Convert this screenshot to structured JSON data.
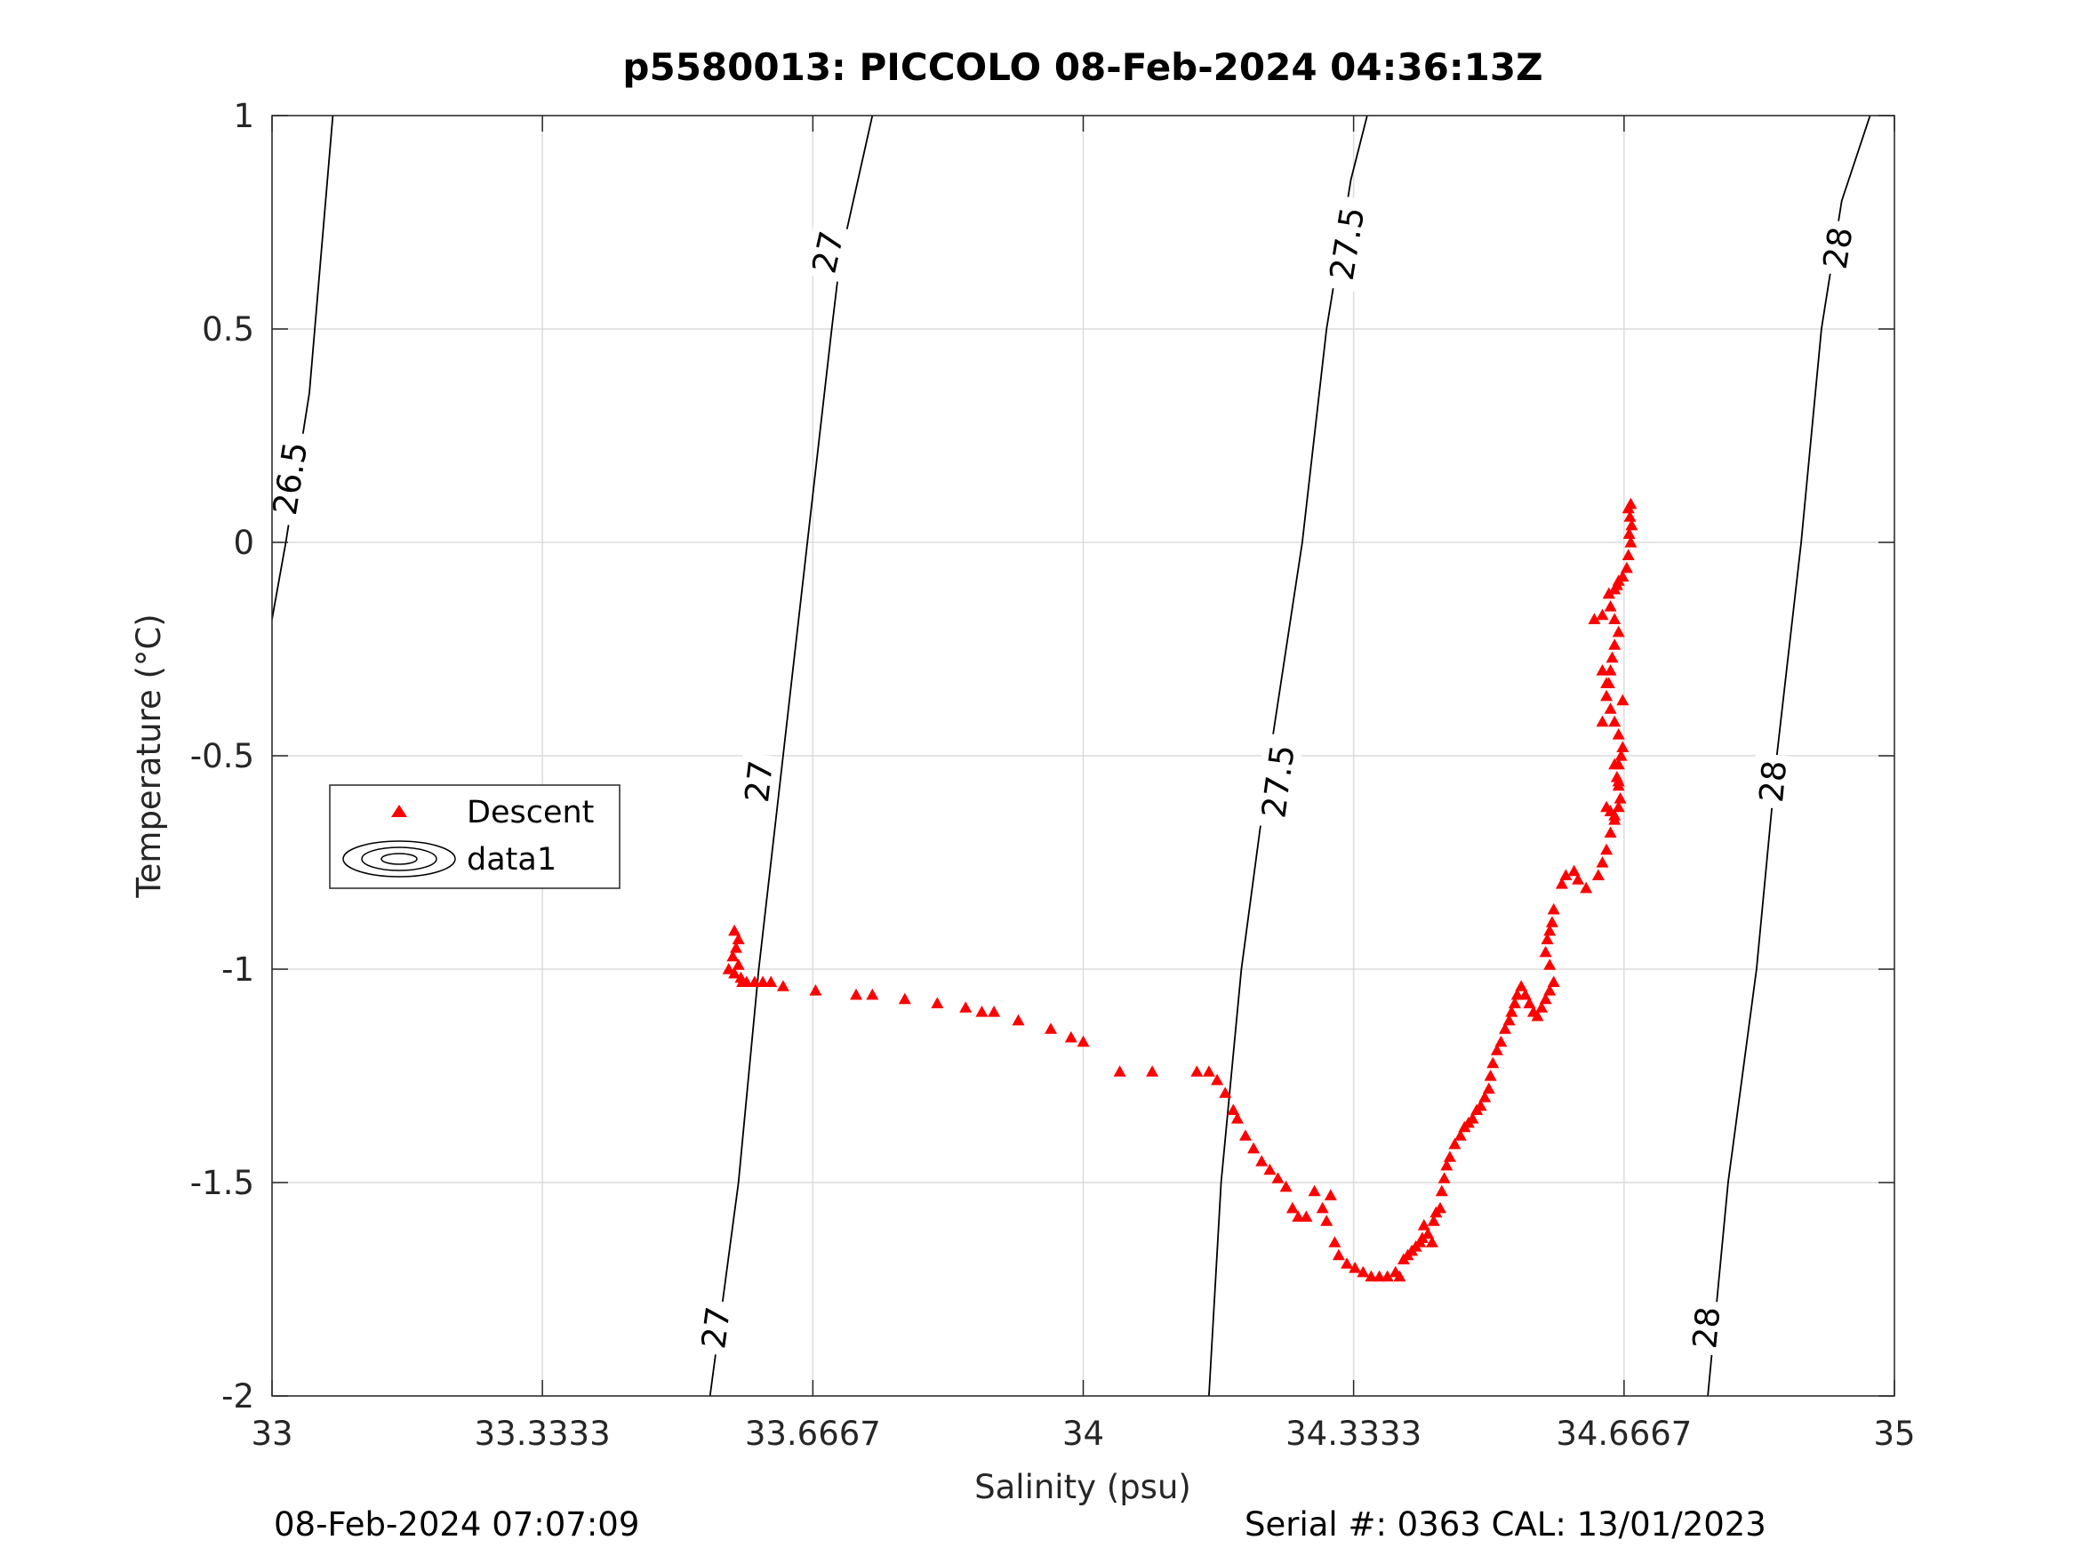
{
  "chart_data": {
    "type": "scatter",
    "title": "p5580013: PICCOLO 08-Feb-2024 04:36:13Z",
    "xlabel": "Salinity (psu)",
    "ylabel": "Temperature (°C)",
    "xlim": [
      33,
      35
    ],
    "ylim": [
      -2,
      1
    ],
    "x_ticks": [
      {
        "value": 33,
        "label": "33"
      },
      {
        "value": 33.3333,
        "label": "33.3333"
      },
      {
        "value": 33.6667,
        "label": "33.6667"
      },
      {
        "value": 34,
        "label": "34"
      },
      {
        "value": 34.3333,
        "label": "34.3333"
      },
      {
        "value": 34.6667,
        "label": "34.6667"
      },
      {
        "value": 35,
        "label": "35"
      }
    ],
    "y_ticks": [
      {
        "value": 1,
        "label": "1"
      },
      {
        "value": 0.5,
        "label": "0.5"
      },
      {
        "value": 0,
        "label": "0"
      },
      {
        "value": -0.5,
        "label": "-0.5"
      },
      {
        "value": -1,
        "label": "-1"
      },
      {
        "value": -1.5,
        "label": "-1.5"
      },
      {
        "value": -2,
        "label": "-2"
      }
    ],
    "grid": true,
    "legend": {
      "placement": "left-middle",
      "entries": [
        {
          "label": "Descent",
          "marker": "triangle",
          "color": "#ff0000"
        },
        {
          "label": "data1",
          "marker": "contour",
          "color": "#000000"
        }
      ]
    },
    "contours": [
      {
        "level": "26.5",
        "points": [
          [
            33.0,
            -0.18
          ],
          [
            33.017,
            0.0
          ],
          [
            33.046,
            0.35
          ],
          [
            33.075,
            1.0
          ]
        ],
        "labels": [
          {
            "s": 33.022,
            "t": 0.15,
            "text": "26.5"
          }
        ]
      },
      {
        "level": "27",
        "points": [
          [
            33.54,
            -2.0
          ],
          [
            33.575,
            -1.5
          ],
          [
            33.6,
            -1.0
          ],
          [
            33.63,
            -0.5
          ],
          [
            33.66,
            0.0
          ],
          [
            33.69,
            0.5
          ],
          [
            33.7,
            0.66
          ],
          [
            33.74,
            1.0
          ]
        ],
        "labels": [
          {
            "s": 33.547,
            "t": -1.84,
            "text": "27"
          },
          {
            "s": 33.6,
            "t": -0.56,
            "text": "27"
          },
          {
            "s": 33.685,
            "t": 0.68,
            "text": "27"
          }
        ]
      },
      {
        "level": "27.5",
        "points": [
          [
            34.155,
            -2.0
          ],
          [
            34.17,
            -1.5
          ],
          [
            34.195,
            -1.0
          ],
          [
            34.23,
            -0.5
          ],
          [
            34.27,
            0.0
          ],
          [
            34.3,
            0.5
          ],
          [
            34.33,
            0.85
          ],
          [
            34.35,
            1.0
          ]
        ],
        "labels": [
          {
            "s": 34.24,
            "t": -0.56,
            "text": "27.5"
          },
          {
            "s": 34.325,
            "t": 0.7,
            "text": "27.5"
          }
        ]
      },
      {
        "level": "28",
        "points": [
          [
            34.77,
            -2.0
          ],
          [
            34.795,
            -1.5
          ],
          [
            34.83,
            -1.0
          ],
          [
            34.855,
            -0.5
          ],
          [
            34.885,
            0.0
          ],
          [
            34.91,
            0.5
          ],
          [
            34.935,
            0.8
          ],
          [
            34.97,
            1.0
          ]
        ],
        "labels": [
          {
            "s": 34.768,
            "t": -1.84,
            "text": "28"
          },
          {
            "s": 34.85,
            "t": -0.56,
            "text": "28"
          },
          {
            "s": 34.93,
            "t": 0.69,
            "text": "28"
          }
        ]
      }
    ],
    "series": [
      {
        "name": "Descent",
        "marker": "triangle",
        "color": "#ff0000",
        "points": [
          [
            33.57,
            -0.91
          ],
          [
            33.575,
            -0.93
          ],
          [
            33.572,
            -0.95
          ],
          [
            33.568,
            -0.97
          ],
          [
            33.575,
            -0.99
          ],
          [
            33.563,
            -1.0
          ],
          [
            33.57,
            -1.01
          ],
          [
            33.578,
            -1.02
          ],
          [
            33.58,
            -1.03
          ],
          [
            33.585,
            -1.03
          ],
          [
            33.595,
            -1.03
          ],
          [
            33.605,
            -1.03
          ],
          [
            33.615,
            -1.03
          ],
          [
            33.63,
            -1.04
          ],
          [
            33.67,
            -1.05
          ],
          [
            33.72,
            -1.06
          ],
          [
            33.74,
            -1.06
          ],
          [
            33.78,
            -1.07
          ],
          [
            33.82,
            -1.08
          ],
          [
            33.855,
            -1.09
          ],
          [
            33.875,
            -1.1
          ],
          [
            33.89,
            -1.1
          ],
          [
            33.92,
            -1.12
          ],
          [
            33.96,
            -1.14
          ],
          [
            33.985,
            -1.16
          ],
          [
            34.0,
            -1.17
          ],
          [
            34.045,
            -1.24
          ],
          [
            34.085,
            -1.24
          ],
          [
            34.14,
            -1.24
          ],
          [
            34.155,
            -1.24
          ],
          [
            34.165,
            -1.26
          ],
          [
            34.175,
            -1.29
          ],
          [
            34.185,
            -1.33
          ],
          [
            34.19,
            -1.35
          ],
          [
            34.2,
            -1.39
          ],
          [
            34.21,
            -1.42
          ],
          [
            34.22,
            -1.45
          ],
          [
            34.23,
            -1.47
          ],
          [
            34.24,
            -1.49
          ],
          [
            34.25,
            -1.51
          ],
          [
            34.258,
            -1.56
          ],
          [
            34.265,
            -1.58
          ],
          [
            34.275,
            -1.58
          ],
          [
            34.285,
            -1.52
          ],
          [
            34.295,
            -1.56
          ],
          [
            34.305,
            -1.53
          ],
          [
            34.3,
            -1.59
          ],
          [
            34.31,
            -1.64
          ],
          [
            34.315,
            -1.67
          ],
          [
            34.325,
            -1.69
          ],
          [
            34.335,
            -1.7
          ],
          [
            34.345,
            -1.71
          ],
          [
            34.355,
            -1.72
          ],
          [
            34.365,
            -1.72
          ],
          [
            34.375,
            -1.72
          ],
          [
            34.385,
            -1.71
          ],
          [
            34.39,
            -1.72
          ],
          [
            34.395,
            -1.68
          ],
          [
            34.4,
            -1.67
          ],
          [
            34.405,
            -1.66
          ],
          [
            34.41,
            -1.65
          ],
          [
            34.415,
            -1.64
          ],
          [
            34.418,
            -1.63
          ],
          [
            34.42,
            -1.6
          ],
          [
            34.425,
            -1.62
          ],
          [
            34.43,
            -1.64
          ],
          [
            34.432,
            -1.59
          ],
          [
            34.435,
            -1.57
          ],
          [
            34.44,
            -1.56
          ],
          [
            34.442,
            -1.52
          ],
          [
            34.445,
            -1.49
          ],
          [
            34.448,
            -1.46
          ],
          [
            34.452,
            -1.44
          ],
          [
            34.458,
            -1.41
          ],
          [
            34.465,
            -1.39
          ],
          [
            34.47,
            -1.37
          ],
          [
            34.475,
            -1.36
          ],
          [
            34.48,
            -1.35
          ],
          [
            34.485,
            -1.33
          ],
          [
            34.49,
            -1.32
          ],
          [
            34.495,
            -1.3
          ],
          [
            34.5,
            -1.28
          ],
          [
            34.502,
            -1.25
          ],
          [
            34.505,
            -1.22
          ],
          [
            34.51,
            -1.19
          ],
          [
            34.515,
            -1.17
          ],
          [
            34.52,
            -1.14
          ],
          [
            34.525,
            -1.12
          ],
          [
            34.528,
            -1.1
          ],
          [
            34.532,
            -1.08
          ],
          [
            34.535,
            -1.06
          ],
          [
            34.54,
            -1.04
          ],
          [
            34.545,
            -1.06
          ],
          [
            34.55,
            -1.08
          ],
          [
            34.555,
            -1.1
          ],
          [
            34.56,
            -1.11
          ],
          [
            34.565,
            -1.09
          ],
          [
            34.57,
            -1.07
          ],
          [
            34.575,
            -1.05
          ],
          [
            34.58,
            -1.03
          ],
          [
            34.575,
            -0.99
          ],
          [
            34.57,
            -0.96
          ],
          [
            34.572,
            -0.93
          ],
          [
            34.575,
            -0.91
          ],
          [
            34.578,
            -0.89
          ],
          [
            34.58,
            -0.86
          ],
          [
            34.59,
            -0.8
          ],
          [
            34.595,
            -0.78
          ],
          [
            34.605,
            -0.77
          ],
          [
            34.61,
            -0.79
          ],
          [
            34.62,
            -0.81
          ],
          [
            34.635,
            -0.78
          ],
          [
            34.64,
            -0.75
          ],
          [
            34.645,
            -0.72
          ],
          [
            34.65,
            -0.68
          ],
          [
            34.655,
            -0.65
          ],
          [
            34.66,
            -0.62
          ],
          [
            34.662,
            -0.6
          ],
          [
            34.66,
            -0.57
          ],
          [
            34.658,
            -0.55
          ],
          [
            34.66,
            -0.52
          ],
          [
            34.663,
            -0.5
          ],
          [
            34.665,
            -0.48
          ],
          [
            34.66,
            -0.45
          ],
          [
            34.655,
            -0.42
          ],
          [
            34.65,
            -0.39
          ],
          [
            34.645,
            -0.36
          ],
          [
            34.648,
            -0.33
          ],
          [
            34.65,
            -0.3
          ],
          [
            34.652,
            -0.27
          ],
          [
            34.655,
            -0.24
          ],
          [
            34.66,
            -0.21
          ],
          [
            34.655,
            -0.18
          ],
          [
            34.65,
            -0.15
          ],
          [
            34.648,
            -0.12
          ],
          [
            34.658,
            -0.1
          ],
          [
            34.665,
            -0.08
          ],
          [
            34.67,
            -0.06
          ],
          [
            34.672,
            -0.03
          ],
          [
            34.675,
            0.0
          ],
          [
            34.673,
            0.02
          ],
          [
            34.676,
            0.04
          ],
          [
            34.674,
            0.06
          ],
          [
            34.672,
            0.08
          ],
          [
            34.675,
            0.09
          ],
          [
            34.63,
            -0.18
          ],
          [
            34.64,
            -0.17
          ],
          [
            34.648,
            -0.12
          ],
          [
            34.655,
            -0.11
          ],
          [
            34.66,
            -0.09
          ],
          [
            34.64,
            -0.3
          ],
          [
            34.645,
            -0.33
          ],
          [
            34.665,
            -0.37
          ],
          [
            34.64,
            -0.42
          ],
          [
            34.655,
            -0.52
          ],
          [
            34.66,
            -0.56
          ],
          [
            34.645,
            -0.62
          ],
          [
            34.65,
            -0.63
          ],
          [
            34.655,
            -0.64
          ]
        ]
      }
    ]
  },
  "footer": {
    "left": "08-Feb-2024 07:07:09",
    "right": "Serial #: 0363  CAL: 13/01/2023"
  }
}
